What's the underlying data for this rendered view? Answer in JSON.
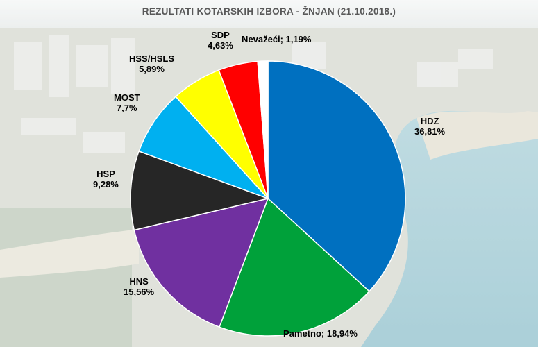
{
  "chart_data": {
    "type": "pie",
    "title": "REZULTATI KOTARSKIH IZBORA - ŽNJAN (21.10.2018.)",
    "slices": [
      {
        "name": "HDZ",
        "value": 36.81,
        "label": "36,81%",
        "color": "#0070C0"
      },
      {
        "name": "Pametno",
        "value": 18.94,
        "label": "18,94%",
        "color": "#00A13A"
      },
      {
        "name": "HNS",
        "value": 15.56,
        "label": "15,56%",
        "color": "#7030A0"
      },
      {
        "name": "HSP",
        "value": 9.28,
        "label": "9,28%",
        "color": "#262626"
      },
      {
        "name": "MOST",
        "value": 7.7,
        "label": "7,7%",
        "color": "#00B0F0"
      },
      {
        "name": "HSS/HSLS",
        "value": 5.89,
        "label": "5,89%",
        "color": "#FFFF00"
      },
      {
        "name": "SDP",
        "value": 4.63,
        "label": "4,63%",
        "color": "#FF0000"
      },
      {
        "name": "Nevažeći",
        "value": 1.19,
        "label": "1,19%",
        "color": "#FFFFFF"
      }
    ]
  }
}
